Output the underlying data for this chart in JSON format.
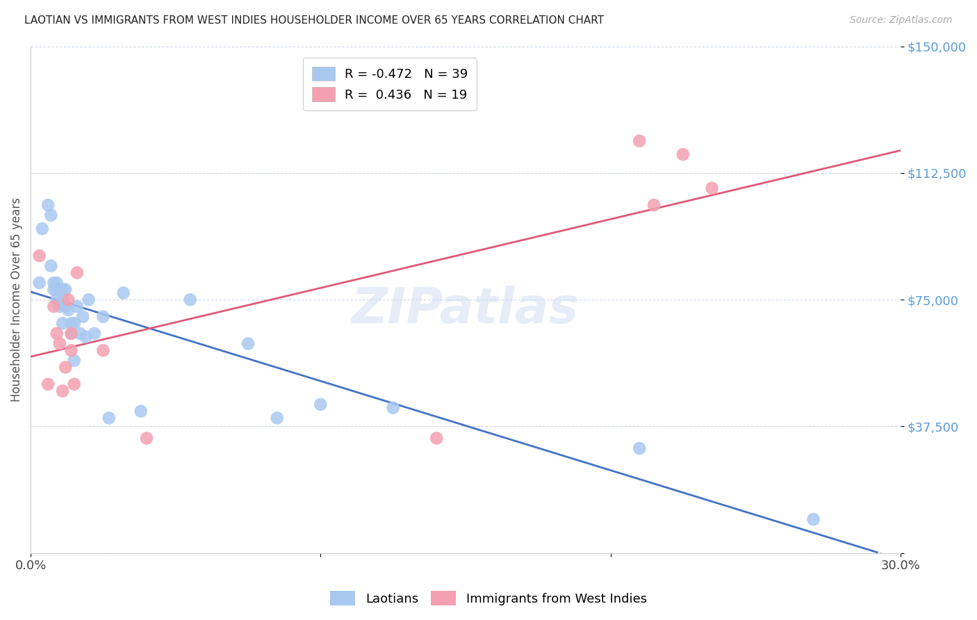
{
  "title": "LAOTIAN VS IMMIGRANTS FROM WEST INDIES HOUSEHOLDER INCOME OVER 65 YEARS CORRELATION CHART",
  "source": "Source: ZipAtlas.com",
  "ylabel": "Householder Income Over 65 years",
  "ylim": [
    0,
    150000
  ],
  "xlim": [
    0,
    0.3
  ],
  "yticks": [
    0,
    37500,
    75000,
    112500,
    150000
  ],
  "ytick_labels": [
    "",
    "$37,500",
    "$75,000",
    "$112,500",
    "$150,000"
  ],
  "xtick_positions": [
    0.0,
    0.1,
    0.2,
    0.3
  ],
  "xtick_labels": [
    "0.0%",
    "",
    "",
    "30.0%"
  ],
  "background_color": "#ffffff",
  "grid_color": "#d0d8e8",
  "blue_color": "#a8c8f0",
  "pink_color": "#f4a0b0",
  "blue_line_color": "#4472c4",
  "pink_line_color": "#e05878",
  "legend_r_blue": "-0.472",
  "legend_n_blue": "39",
  "legend_r_pink": "0.436",
  "legend_n_pink": "19",
  "laotian_x": [
    0.003,
    0.004,
    0.006,
    0.007,
    0.007,
    0.008,
    0.008,
    0.009,
    0.009,
    0.009,
    0.01,
    0.01,
    0.011,
    0.011,
    0.011,
    0.012,
    0.012,
    0.013,
    0.014,
    0.014,
    0.015,
    0.015,
    0.016,
    0.017,
    0.018,
    0.019,
    0.02,
    0.022,
    0.025,
    0.027,
    0.032,
    0.038,
    0.055,
    0.075,
    0.085,
    0.1,
    0.125,
    0.21,
    0.27
  ],
  "laotian_y": [
    80000,
    96000,
    103000,
    100000,
    85000,
    80000,
    78000,
    80000,
    78000,
    75000,
    78000,
    73000,
    78000,
    75000,
    68000,
    78000,
    73000,
    72000,
    68000,
    65000,
    68000,
    57000,
    73000,
    65000,
    70000,
    64000,
    75000,
    65000,
    70000,
    40000,
    77000,
    42000,
    75000,
    62000,
    40000,
    44000,
    43000,
    31000,
    10000
  ],
  "westindies_x": [
    0.003,
    0.006,
    0.008,
    0.009,
    0.01,
    0.011,
    0.012,
    0.013,
    0.014,
    0.014,
    0.015,
    0.016,
    0.025,
    0.04,
    0.14,
    0.21,
    0.215,
    0.225,
    0.235
  ],
  "westindies_y": [
    88000,
    50000,
    73000,
    65000,
    62000,
    48000,
    55000,
    75000,
    65000,
    60000,
    50000,
    83000,
    60000,
    34000,
    34000,
    122000,
    103000,
    118000,
    108000
  ]
}
